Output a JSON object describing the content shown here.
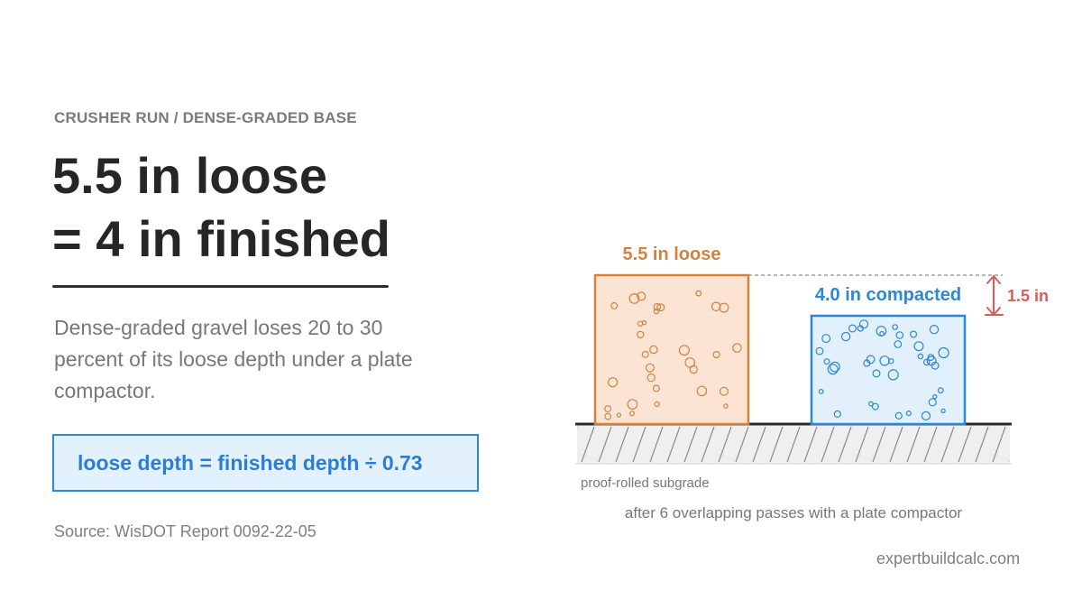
{
  "header": {
    "eyebrow": "CRUSHER RUN / DENSE-GRADED BASE",
    "headline_line1": "5.5 in loose",
    "headline_line2": "= 4 in finished"
  },
  "body": {
    "description": "Dense-graded gravel loses 20 to 30 percent of its loose depth under a plate compactor."
  },
  "formula": {
    "text": "loose depth = finished depth ÷ 0.73"
  },
  "source": "Source: WisDOT Report 0092-22-05",
  "diagram": {
    "loose_label": "5.5 in loose",
    "compacted_label": "4.0 in compacted",
    "difference_label": "1.5 in",
    "subgrade_label": "proof-rolled subgrade",
    "caption": "after 6 overlapping passes with a plate compactor",
    "colors": {
      "loose": "#d08340",
      "loose_fill": "#fbe4d4",
      "compacted": "#2e86d4",
      "compacted_fill": "#e2f0fb",
      "difference": "#dd5a5a"
    }
  },
  "footer": {
    "site": "expertbuildcalc.com"
  }
}
